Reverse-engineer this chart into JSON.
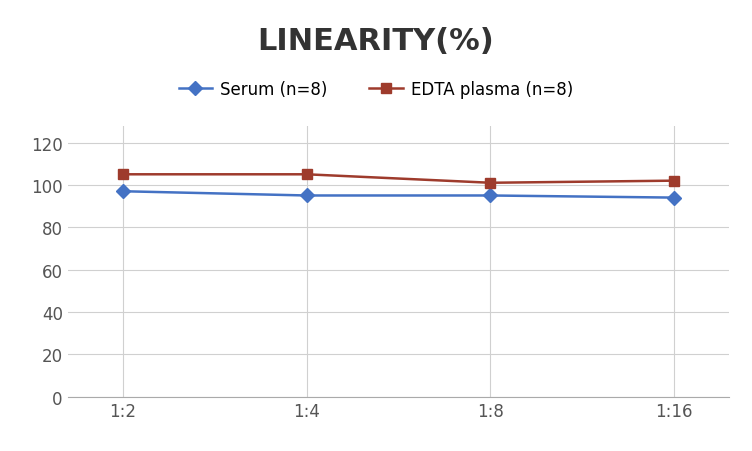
{
  "title": "LINEARITY(%)",
  "x_labels": [
    "1:2",
    "1:4",
    "1:8",
    "1:16"
  ],
  "x_positions": [
    0,
    1,
    2,
    3
  ],
  "serum_label": "Serum (n=8)",
  "serum_values": [
    97,
    95,
    95,
    94
  ],
  "serum_color": "#4472C4",
  "serum_marker": "D",
  "edta_label": "EDTA plasma (n=8)",
  "edta_values": [
    105,
    105,
    101,
    102
  ],
  "edta_color": "#9E3B2C",
  "edta_marker": "s",
  "ylim": [
    0,
    128
  ],
  "yticks": [
    0,
    20,
    40,
    60,
    80,
    100,
    120
  ],
  "title_fontsize": 22,
  "legend_fontsize": 12,
  "tick_fontsize": 12,
  "background_color": "#ffffff",
  "grid_color": "#d0d0d0",
  "line_width": 1.8,
  "marker_size": 7
}
